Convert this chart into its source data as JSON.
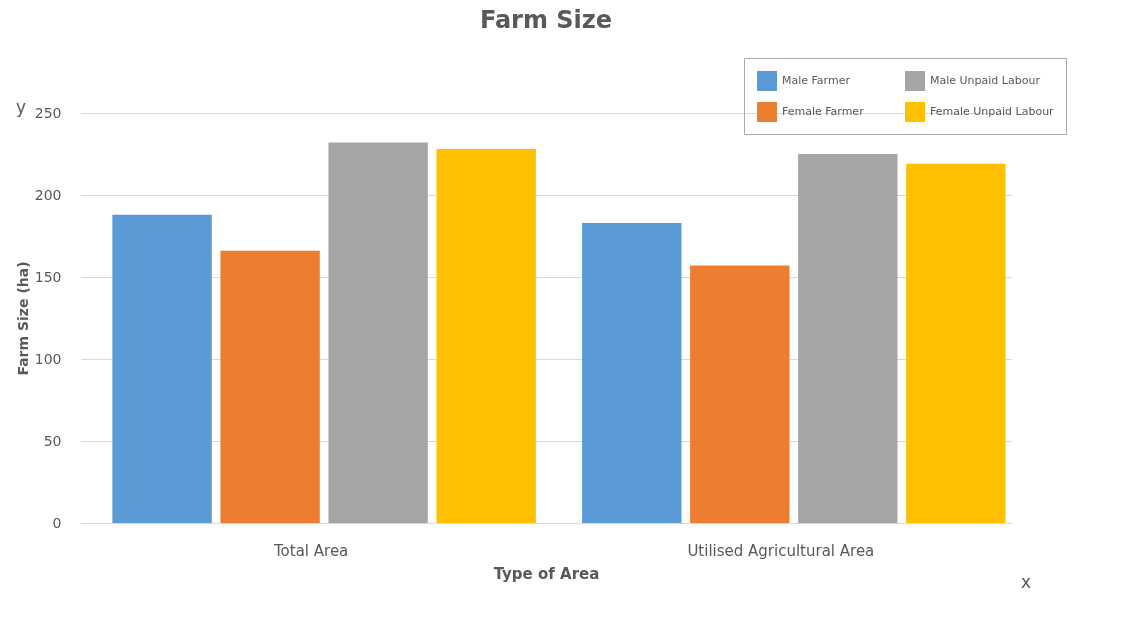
{
  "chart_data": {
    "type": "bar",
    "title": "Farm Size",
    "xlabel": "Type of Area",
    "ylabel": "Farm Size (ha)",
    "categories": [
      "Total Area",
      "Utilised Agricultural Area"
    ],
    "series": [
      {
        "name": "Male Farmer",
        "color": "#5b9bd5",
        "values": [
          188,
          183
        ]
      },
      {
        "name": "Female Farmer",
        "color": "#ed7d31",
        "values": [
          166,
          157
        ]
      },
      {
        "name": "Male Unpaid Labour",
        "color": "#a5a5a5",
        "values": [
          232,
          225
        ]
      },
      {
        "name": "Female Unpaid Labour",
        "color": "#ffc000",
        "values": [
          228,
          219
        ]
      }
    ],
    "ylim": [
      0,
      250
    ],
    "yticks": [
      0,
      50,
      100,
      150,
      200,
      250
    ],
    "grid": "y",
    "legend": "top right",
    "annotations": [
      "y",
      "x"
    ]
  }
}
